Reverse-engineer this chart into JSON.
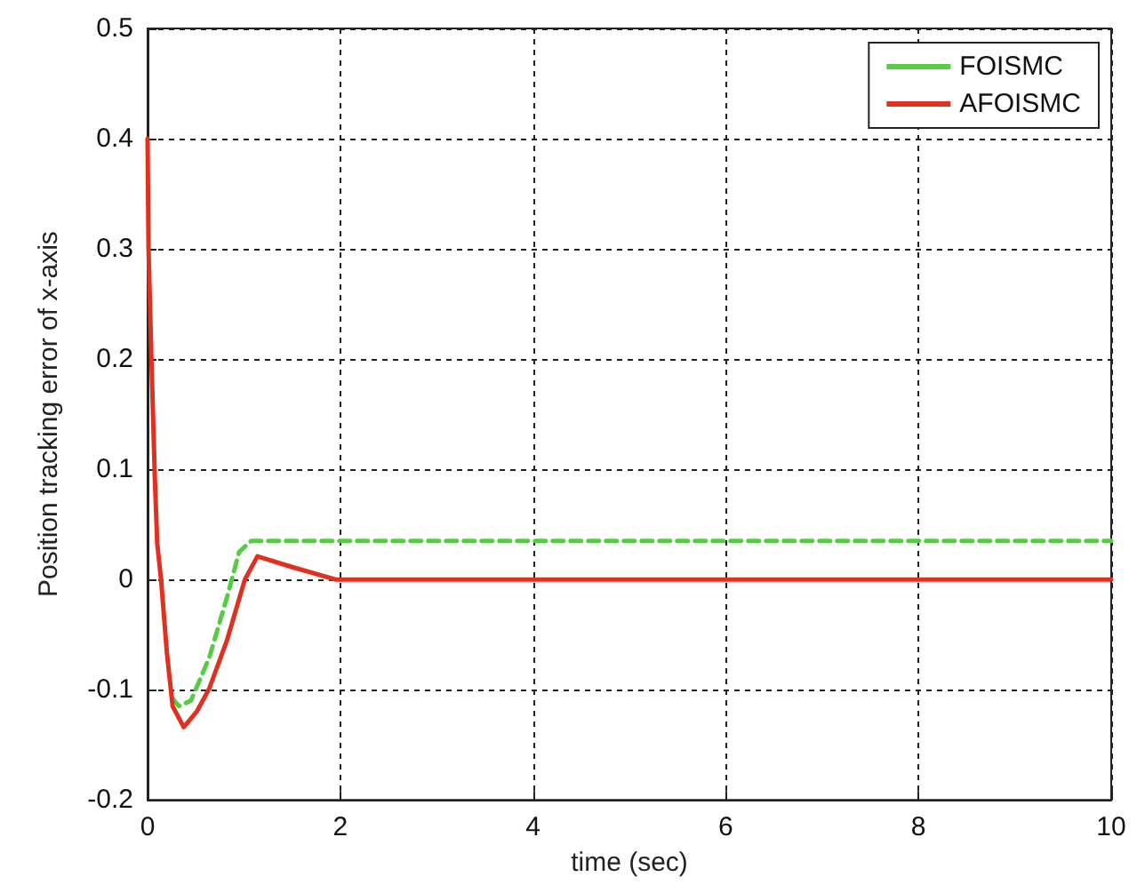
{
  "chart_data": {
    "type": "line",
    "xlabel": "time (sec)",
    "ylabel": "Position tracking error of x-axis",
    "xlim": [
      0,
      10
    ],
    "xticks": [
      0,
      2,
      4,
      6,
      8,
      10
    ],
    "ylim": [
      -0.2,
      0.5
    ],
    "yticks": [
      -0.2,
      -0.1,
      0,
      0.1,
      0.2,
      0.3,
      0.4,
      0.5
    ],
    "grid": true,
    "legend": "top right",
    "marker": "none",
    "series": [
      {
        "name": "FOISMC",
        "color": "#55cc44",
        "line_style": "dashed",
        "x": [
          0.26,
          0.325,
          0.45,
          0.64,
          0.825,
          0.95,
          1.075,
          10
        ],
        "values": [
          -0.108,
          -0.115,
          -0.11,
          -0.071,
          -0.016,
          0.025,
          0.035,
          0.035
        ]
      },
      {
        "name": "AFOISMC",
        "color": "#e03020",
        "line_style": "solid",
        "x": [
          0,
          0.01,
          0.04,
          0.075,
          0.1,
          0.14,
          0.2,
          0.26,
          0.375,
          0.51,
          0.64,
          0.825,
          1.01,
          1.14,
          1.51,
          1.95,
          10
        ],
        "values": [
          0.4,
          0.3,
          0.2,
          0.093,
          0.033,
          0,
          -0.066,
          -0.115,
          -0.134,
          -0.12,
          -0.099,
          -0.055,
          0,
          0.021,
          0.011,
          0,
          0
        ]
      }
    ]
  }
}
